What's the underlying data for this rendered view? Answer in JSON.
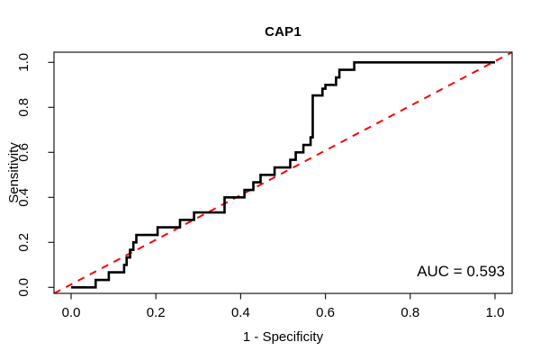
{
  "chart_data": {
    "type": "line",
    "subtype": "roc-step-curve",
    "title": "CAP1",
    "xlabel": "1 - Specificity",
    "ylabel": "Sensitivity",
    "xlim": [
      0,
      1
    ],
    "ylim": [
      0,
      1
    ],
    "grid": false,
    "legend": null,
    "x_ticks": [
      0,
      0.2,
      0.4,
      0.6,
      0.8,
      1
    ],
    "x_tick_labels": [
      "0.0",
      "0.2",
      "0.4",
      "0.6",
      "0.8",
      "1.0"
    ],
    "y_ticks": [
      0,
      0.2,
      0.4,
      0.6,
      0.8,
      1
    ],
    "y_tick_labels": [
      "0.0",
      "0.2",
      "0.4",
      "0.6",
      "0.8",
      "1.0"
    ],
    "annotation": "AUC = 0.593",
    "auc": 0.593,
    "colors": {
      "curve": "#000000",
      "reference": "#ff0000",
      "axis": "#1a1a1a"
    },
    "series": [
      {
        "name": "ROC curve",
        "style": "solid-step",
        "color": "#000000",
        "line_width": 2.6,
        "points": [
          [
            0.0,
            0.0
          ],
          [
            0.058,
            0.0
          ],
          [
            0.058,
            0.033
          ],
          [
            0.089,
            0.033
          ],
          [
            0.089,
            0.067
          ],
          [
            0.125,
            0.067
          ],
          [
            0.125,
            0.1
          ],
          [
            0.131,
            0.1
          ],
          [
            0.131,
            0.133
          ],
          [
            0.139,
            0.133
          ],
          [
            0.139,
            0.167
          ],
          [
            0.147,
            0.167
          ],
          [
            0.147,
            0.2
          ],
          [
            0.154,
            0.2
          ],
          [
            0.154,
            0.233
          ],
          [
            0.204,
            0.233
          ],
          [
            0.204,
            0.267
          ],
          [
            0.257,
            0.267
          ],
          [
            0.257,
            0.3
          ],
          [
            0.29,
            0.3
          ],
          [
            0.29,
            0.333
          ],
          [
            0.362,
            0.333
          ],
          [
            0.362,
            0.4
          ],
          [
            0.409,
            0.4
          ],
          [
            0.409,
            0.433
          ],
          [
            0.43,
            0.433
          ],
          [
            0.43,
            0.467
          ],
          [
            0.447,
            0.467
          ],
          [
            0.447,
            0.5
          ],
          [
            0.48,
            0.5
          ],
          [
            0.48,
            0.533
          ],
          [
            0.517,
            0.533
          ],
          [
            0.517,
            0.567
          ],
          [
            0.53,
            0.567
          ],
          [
            0.53,
            0.6
          ],
          [
            0.548,
            0.6
          ],
          [
            0.548,
            0.633
          ],
          [
            0.565,
            0.633
          ],
          [
            0.565,
            0.667
          ],
          [
            0.57,
            0.667
          ],
          [
            0.57,
            0.853
          ],
          [
            0.593,
            0.853
          ],
          [
            0.593,
            0.883
          ],
          [
            0.6,
            0.883
          ],
          [
            0.6,
            0.9
          ],
          [
            0.625,
            0.9
          ],
          [
            0.625,
            0.933
          ],
          [
            0.633,
            0.933
          ],
          [
            0.633,
            0.967
          ],
          [
            0.668,
            0.967
          ],
          [
            0.668,
            1.0
          ],
          [
            1.0,
            1.0
          ]
        ]
      },
      {
        "name": "chance diagonal",
        "style": "dashed",
        "color": "#ff0000",
        "line_width": 2,
        "extend_to_box": true,
        "points": [
          [
            0,
            0
          ],
          [
            1,
            1
          ]
        ]
      }
    ]
  }
}
